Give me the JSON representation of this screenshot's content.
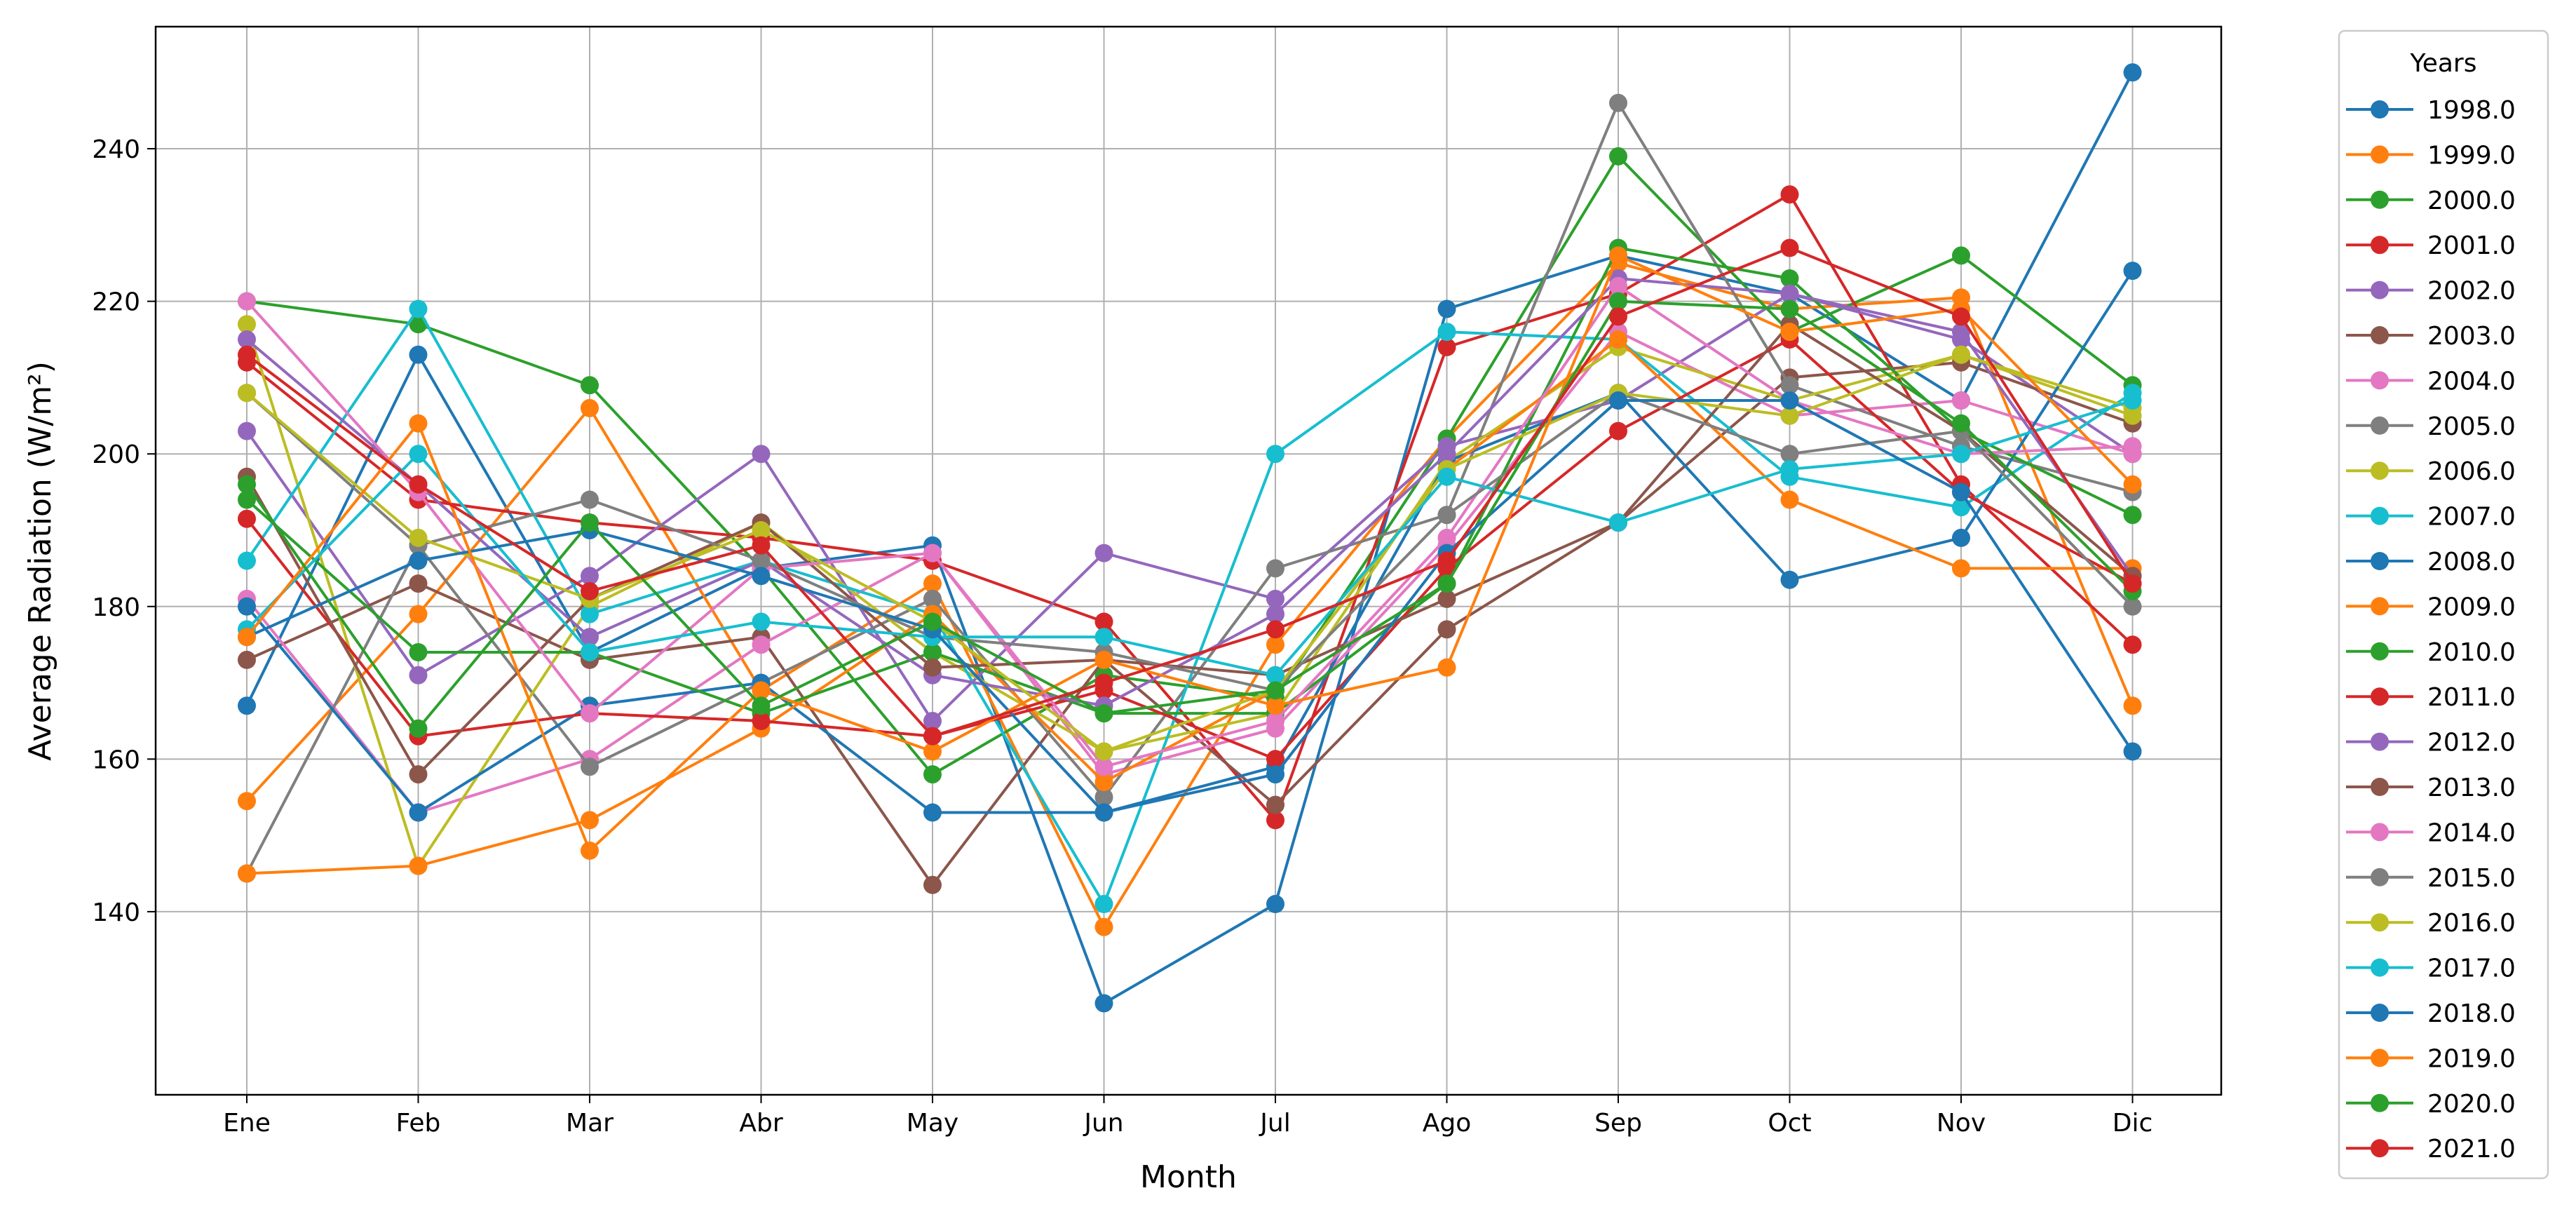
{
  "chart_data": {
    "type": "line",
    "title": "",
    "xlabel": "Month",
    "ylabel": "Average Radiation (W/m²)",
    "categories": [
      "Ene",
      "Feb",
      "Mar",
      "Abr",
      "May",
      "Jun",
      "Jul",
      "Ago",
      "Sep",
      "Oct",
      "Nov",
      "Dic"
    ],
    "ylim": [
      116,
      256
    ],
    "yticks": [
      140,
      160,
      180,
      200,
      220,
      240
    ],
    "grid": true,
    "legend": {
      "title": "Years",
      "placement": "outside-right"
    },
    "series": [
      {
        "name": "1998.0",
        "color": "#1f77b4",
        "values": [
          167,
          213,
          174,
          185,
          188,
          128,
          141,
          219,
          226,
          221,
          207,
          250
        ]
      },
      {
        "name": "1999.0",
        "color": "#ff7f0e",
        "values": [
          154.5,
          179,
          206,
          169,
          183,
          138,
          175,
          202,
          225,
          219,
          220.5,
          167
        ]
      },
      {
        "name": "2000.0",
        "color": "#2ca02c",
        "values": [
          220,
          217,
          209,
          185,
          158,
          171,
          168,
          202,
          239,
          216,
          226,
          209
        ]
      },
      {
        "name": "2001.0",
        "color": "#d62728",
        "values": [
          212,
          194,
          191,
          189,
          186,
          178,
          152,
          214,
          221,
          234,
          196,
          175
        ]
      },
      {
        "name": "2002.0",
        "color": "#9467bd",
        "values": [
          203,
          171,
          184,
          200,
          165,
          187,
          181,
          201,
          207,
          221,
          215,
          200
        ]
      },
      {
        "name": "2003.0",
        "color": "#8c564b",
        "values": [
          173,
          183,
          173,
          176,
          143.5,
          173,
          154,
          177,
          191,
          210,
          212,
          204
        ]
      },
      {
        "name": "2004.0",
        "color": "#e377c2",
        "values": [
          181,
          153,
          160,
          175,
          187,
          158,
          164,
          188,
          216,
          205,
          207,
          200
        ]
      },
      {
        "name": "2005.0",
        "color": "#7f7f7f",
        "values": [
          145,
          188,
          159,
          170,
          181,
          155,
          185,
          192,
          246,
          209,
          201,
          195
        ]
      },
      {
        "name": "2006.0",
        "color": "#bcbd22",
        "values": [
          217,
          146,
          180,
          191,
          174,
          161,
          166,
          199,
          214,
          207,
          213,
          205
        ]
      },
      {
        "name": "2007.0",
        "color": "#17becf",
        "values": [
          186,
          219,
          179,
          186,
          179,
          141,
          200,
          216,
          215,
          197,
          193,
          208
        ]
      },
      {
        "name": "2008.0",
        "color": "#1f77b4",
        "values": [
          180,
          153,
          167,
          170,
          153,
          153,
          159,
          199,
          208,
          183.5,
          189,
          224
        ]
      },
      {
        "name": "2009.0",
        "color": "#ff7f0e",
        "values": [
          145,
          146,
          152,
          164,
          179,
          157,
          169,
          198,
          215,
          194,
          185,
          185
        ]
      },
      {
        "name": "2010.0",
        "color": "#2ca02c",
        "values": [
          194,
          174,
          174,
          166,
          174,
          166,
          166,
          183,
          227,
          223,
          203,
          192
        ]
      },
      {
        "name": "2011.0",
        "color": "#d62728",
        "values": [
          191.5,
          163,
          166,
          165,
          163,
          169,
          160,
          185,
          203,
          215,
          195,
          183
        ]
      },
      {
        "name": "2012.0",
        "color": "#9467bd",
        "values": [
          215,
          196,
          176,
          186,
          171,
          167,
          179,
          200,
          223,
          221,
          216,
          184
        ]
      },
      {
        "name": "2013.0",
        "color": "#8c564b",
        "values": [
          197,
          158,
          181,
          191,
          172,
          173,
          171,
          181,
          191,
          217,
          203,
          184
        ]
      },
      {
        "name": "2014.0",
        "color": "#e377c2",
        "values": [
          220,
          195,
          166,
          185,
          187,
          159,
          165,
          189,
          222,
          207,
          200,
          201
        ]
      },
      {
        "name": "2015.0",
        "color": "#7f7f7f",
        "values": [
          208,
          188,
          194,
          186,
          176,
          174,
          169,
          192,
          208,
          200,
          203,
          180
        ]
      },
      {
        "name": "2016.0",
        "color": "#bcbd22",
        "values": [
          208,
          189,
          181,
          190,
          178,
          161,
          169,
          198,
          208,
          205,
          213,
          206
        ]
      },
      {
        "name": "2017.0",
        "color": "#17becf",
        "values": [
          177,
          200,
          174,
          178,
          176,
          176,
          171,
          197,
          191,
          198,
          200,
          207
        ]
      },
      {
        "name": "2018.0",
        "color": "#1f77b4",
        "values": [
          176,
          186,
          190,
          184,
          177,
          153,
          158,
          187,
          207,
          207,
          195,
          161
        ]
      },
      {
        "name": "2019.0",
        "color": "#ff7f0e",
        "values": [
          176,
          204,
          148,
          169,
          161,
          173,
          167,
          172,
          226,
          216,
          219,
          196
        ]
      },
      {
        "name": "2020.0",
        "color": "#2ca02c",
        "values": [
          196,
          164,
          191,
          167,
          178,
          166,
          169,
          183,
          220,
          219,
          204,
          182
        ]
      },
      {
        "name": "2021.0",
        "color": "#d62728",
        "values": [
          213,
          196,
          182,
          188,
          163,
          170,
          177,
          186,
          218,
          227,
          218,
          183
        ]
      }
    ]
  }
}
